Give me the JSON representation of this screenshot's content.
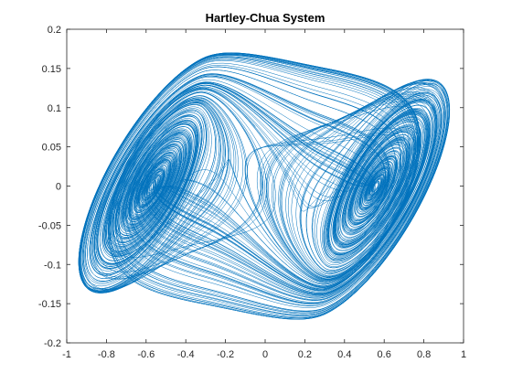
{
  "chart_data": {
    "type": "line",
    "title": "Hartley-Chua System",
    "xlabel": "",
    "ylabel": "",
    "xlim": [
      -1,
      1
    ],
    "ylim": [
      -0.2,
      0.2
    ],
    "x_ticks": [
      -1,
      -0.8,
      -0.6,
      -0.4,
      -0.2,
      0,
      0.2,
      0.4,
      0.6,
      0.8,
      1
    ],
    "x_tick_labels": [
      "-1",
      "-0.8",
      "-0.6",
      "-0.4",
      "-0.2",
      "0",
      "0.2",
      "0.4",
      "0.6",
      "0.8",
      "1"
    ],
    "y_ticks": [
      -0.2,
      -0.15,
      -0.1,
      -0.05,
      0,
      0.05,
      0.1,
      0.15,
      0.2
    ],
    "y_tick_labels": [
      "-0.2",
      "-0.15",
      "-0.1",
      "-0.05",
      "0",
      "0.05",
      "0.1",
      "0.15",
      "0.2"
    ],
    "grid": false,
    "box": true,
    "line_color": "#0072BD",
    "attractor": {
      "system": "Chua double-scroll",
      "x_range": [
        -0.94,
        0.93
      ],
      "y_range": [
        -0.17,
        0.17
      ],
      "left_scroll_center": [
        -0.65,
        0.0
      ],
      "right_scroll_center": [
        0.65,
        0.0
      ]
    }
  }
}
